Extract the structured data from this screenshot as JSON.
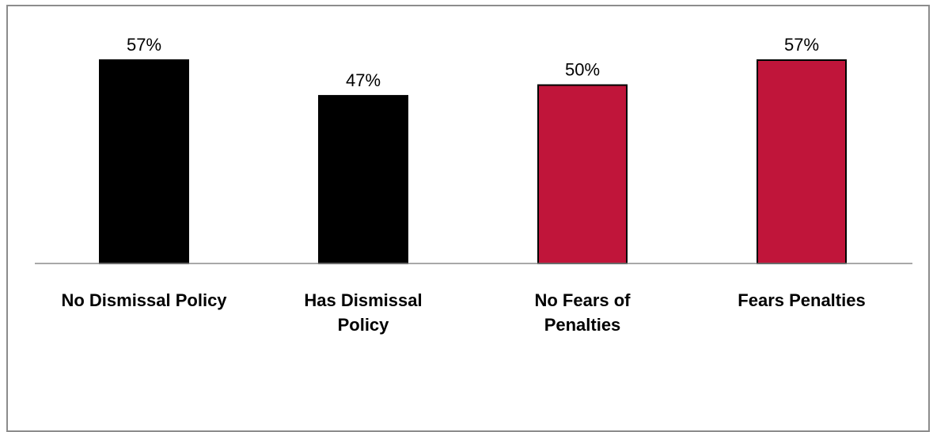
{
  "chart_data": {
    "type": "bar",
    "categories": [
      "No Dismissal Policy",
      "Has Dismissal Policy",
      "No Fears of Penalties",
      "Fears Penalties"
    ],
    "category_lines": [
      [
        "No Dismissal Policy"
      ],
      [
        "Has Dismissal",
        "Policy"
      ],
      [
        "No Fears of",
        "Penalties"
      ],
      [
        "Fears Penalties"
      ]
    ],
    "values": [
      57,
      47,
      50,
      57
    ],
    "value_labels": [
      "57%",
      "47%",
      "50%",
      "57%"
    ],
    "bar_colors": [
      "#000000",
      "#000000",
      "#c0153a",
      "#c0153a"
    ],
    "unit": "%",
    "ylim": [
      0,
      60
    ],
    "grid": false,
    "legend": "none"
  }
}
